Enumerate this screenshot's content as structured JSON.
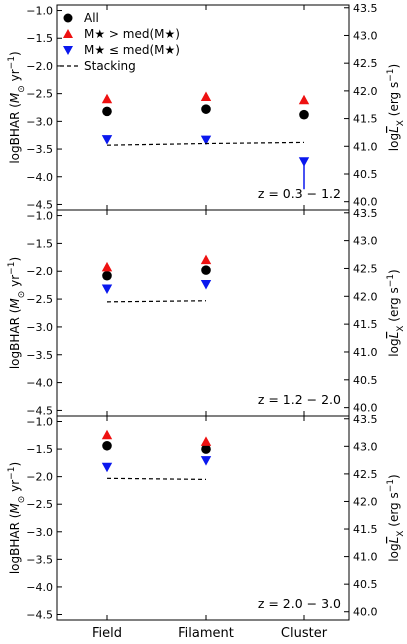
{
  "chart_data": [
    {
      "type": "scatter",
      "panel": "top",
      "categories": [
        "Field",
        "Filament",
        "Cluster"
      ],
      "ylabel": "logBHAR (M⊙ yr⁻¹)",
      "ylabel_right": "logL_X (erg s⁻¹)",
      "ylim": [
        -4.6,
        -0.9
      ],
      "yticks": [
        "-1.0",
        "-1.5",
        "-2.0",
        "-2.5",
        "-3.0",
        "-3.5",
        "-4.0",
        "-4.5"
      ],
      "right_ylim": [
        39.85,
        43.55
      ],
      "right_yticks": [
        "40.0",
        "40.5",
        "41.0",
        "41.5",
        "42.0",
        "42.5",
        "43.0",
        "43.5"
      ],
      "annotation": "z = 0.3 − 1.2",
      "legend": {
        "position": "top-left",
        "entries": [
          "All",
          "M★ > med(M★)",
          "M★ ≤ med(M★)",
          "Stacking"
        ]
      },
      "series": [
        {
          "name": "All",
          "marker": "circle",
          "color": "#000000",
          "values": [
            -2.82,
            -2.78,
            -2.88
          ]
        },
        {
          "name": "M★ > med(M★)",
          "marker": "triangle-up",
          "color": "#ee1111",
          "values": [
            -2.6,
            -2.56,
            -2.62
          ]
        },
        {
          "name": "M★ ≤ med(M★)",
          "marker": "triangle-down",
          "color": "#0a18ee",
          "values": [
            -3.32,
            -3.33,
            -3.72
          ],
          "upper_limit": [
            false,
            false,
            true
          ]
        },
        {
          "name": "Stacking",
          "line": "dashed",
          "color": "#000000",
          "values": [
            -3.43,
            -3.4,
            -3.38
          ]
        }
      ]
    },
    {
      "type": "scatter",
      "panel": "middle",
      "categories": [
        "Field",
        "Filament",
        "Cluster"
      ],
      "ylabel": "logBHAR (M⊙ yr⁻¹)",
      "ylabel_right": "logL_X (erg s⁻¹)",
      "ylim": [
        -4.6,
        -0.9
      ],
      "yticks": [
        "-1.0",
        "-1.5",
        "-2.0",
        "-2.5",
        "-3.0",
        "-3.5",
        "-4.0",
        "-4.5"
      ],
      "right_ylim": [
        39.85,
        43.55
      ],
      "right_yticks": [
        "40.0",
        "40.5",
        "41.0",
        "41.5",
        "42.0",
        "42.5",
        "43.0",
        "43.5"
      ],
      "annotation": "z = 1.2 − 2.0",
      "series": [
        {
          "name": "All",
          "marker": "circle",
          "color": "#000000",
          "values": [
            -2.08,
            -1.98,
            null
          ]
        },
        {
          "name": "M★ > med(M★)",
          "marker": "triangle-up",
          "color": "#ee1111",
          "values": [
            -1.93,
            -1.8,
            null
          ]
        },
        {
          "name": "M★ ≤ med(M★)",
          "marker": "triangle-down",
          "color": "#0a18ee",
          "values": [
            -2.31,
            -2.23,
            null
          ]
        },
        {
          "name": "Stacking",
          "line": "dashed",
          "color": "#000000",
          "values": [
            -2.55,
            -2.53,
            null
          ]
        }
      ]
    },
    {
      "type": "scatter",
      "panel": "bottom",
      "categories": [
        "Field",
        "Filament",
        "Cluster"
      ],
      "ylabel": "logBHAR (M⊙ yr⁻¹)",
      "ylabel_right": "logL_X (erg s⁻¹)",
      "ylim": [
        -4.6,
        -0.9
      ],
      "yticks": [
        "-1.0",
        "-1.5",
        "-2.0",
        "-2.5",
        "-3.0",
        "-3.5",
        "-4.0",
        "-4.5"
      ],
      "right_ylim": [
        39.85,
        43.55
      ],
      "right_yticks": [
        "40.0",
        "40.5",
        "41.0",
        "41.5",
        "42.0",
        "42.5",
        "43.0",
        "43.5"
      ],
      "annotation": "z = 2.0 − 3.0",
      "series": [
        {
          "name": "All",
          "marker": "circle",
          "color": "#000000",
          "values": [
            -1.44,
            -1.5,
            null
          ]
        },
        {
          "name": "M★ > med(M★)",
          "marker": "triangle-up",
          "color": "#ee1111",
          "values": [
            -1.25,
            -1.37,
            null
          ]
        },
        {
          "name": "M★ ≤ med(M★)",
          "marker": "triangle-down",
          "color": "#0a18ee",
          "values": [
            -1.82,
            -1.7,
            null
          ]
        },
        {
          "name": "Stacking",
          "line": "dashed",
          "color": "#000000",
          "values": [
            -2.03,
            -2.05,
            null
          ]
        }
      ]
    }
  ]
}
